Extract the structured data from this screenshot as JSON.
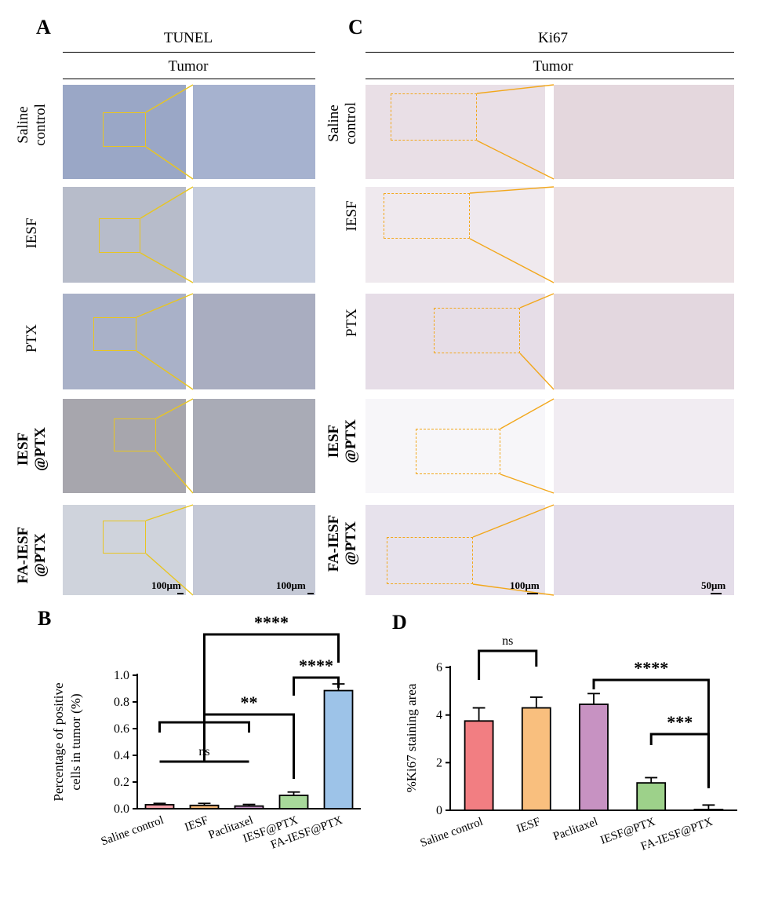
{
  "panels": {
    "A": "A",
    "B": "B",
    "C": "C",
    "D": "D"
  },
  "micrographs": {
    "tunel": {
      "stain": "TUNEL",
      "tissue": "Tumor",
      "scale_left": "100μm",
      "scale_right": "100μm"
    },
    "ki67": {
      "stain": "Ki67",
      "tissue": "Tumor",
      "scale_left": "100μm",
      "scale_right": "50μm"
    },
    "row_labels_tunel": [
      [
        "Saline",
        "control"
      ],
      [
        "IESF"
      ],
      [
        "PTX"
      ],
      [
        "IESF",
        "@PTX"
      ],
      [
        "FA-IESF",
        "@PTX"
      ]
    ],
    "row_labels_ki67": [
      [
        "Saline",
        "control"
      ],
      [
        "IESF"
      ],
      [
        "PTX"
      ],
      [
        "IESF",
        "@PTX"
      ],
      [
        "FA-IESF",
        "@PTX"
      ]
    ],
    "colors": {
      "frame_box": "#e8c521",
      "ki_box": "#f2a71b"
    }
  },
  "chart_data": [
    {
      "panel": "B",
      "type": "bar",
      "categories": [
        "Saline control",
        "IESF",
        "Paclitaxel",
        "IESF@PTX",
        "FA-IESF@PTX"
      ],
      "values": [
        0.03,
        0.025,
        0.02,
        0.1,
        0.885
      ],
      "errors": [
        0.01,
        0.015,
        0.012,
        0.025,
        0.05
      ],
      "colors": [
        "#f2a0a8",
        "#f5b97a",
        "#c694c6",
        "#a8d99a",
        "#9dc3e8"
      ],
      "ylabel": "Percentage of positive cells in tumor (%)",
      "ylim": [
        0,
        1.0
      ],
      "yticks": [
        "0.0",
        "0.2",
        "0.4",
        "0.6",
        "0.8",
        "1.0"
      ],
      "significance": [
        {
          "label": "****",
          "from": 1,
          "to": 4
        },
        {
          "label": "****",
          "from": 3,
          "to": 4
        },
        {
          "label": "**",
          "from": 1,
          "to": 3
        },
        {
          "label": "",
          "from": 0,
          "to": 2
        },
        {
          "label": "ns",
          "from": 0,
          "to": 2
        }
      ]
    },
    {
      "panel": "D",
      "type": "bar",
      "categories": [
        "Saline control",
        "IESF",
        "Paclitaxel",
        "IESF@PTX",
        "FA-IESF@PTX"
      ],
      "values": [
        3.75,
        4.3,
        4.45,
        1.15,
        0.02
      ],
      "errors": [
        0.55,
        0.45,
        0.45,
        0.22,
        0.2
      ],
      "colors": [
        "#f27e82",
        "#f9bf7e",
        "#c792c2",
        "#9dd18a",
        "#8fbde0"
      ],
      "ylabel": "%Ki67 staining area",
      "ylim": [
        0,
        6
      ],
      "yticks": [
        "0",
        "2",
        "4",
        "6"
      ],
      "significance": [
        {
          "label": "ns",
          "from": 0,
          "to": 1
        },
        {
          "label": "****",
          "from": 2,
          "to": 4
        },
        {
          "label": "***",
          "from": 3,
          "to": 4
        }
      ]
    }
  ]
}
